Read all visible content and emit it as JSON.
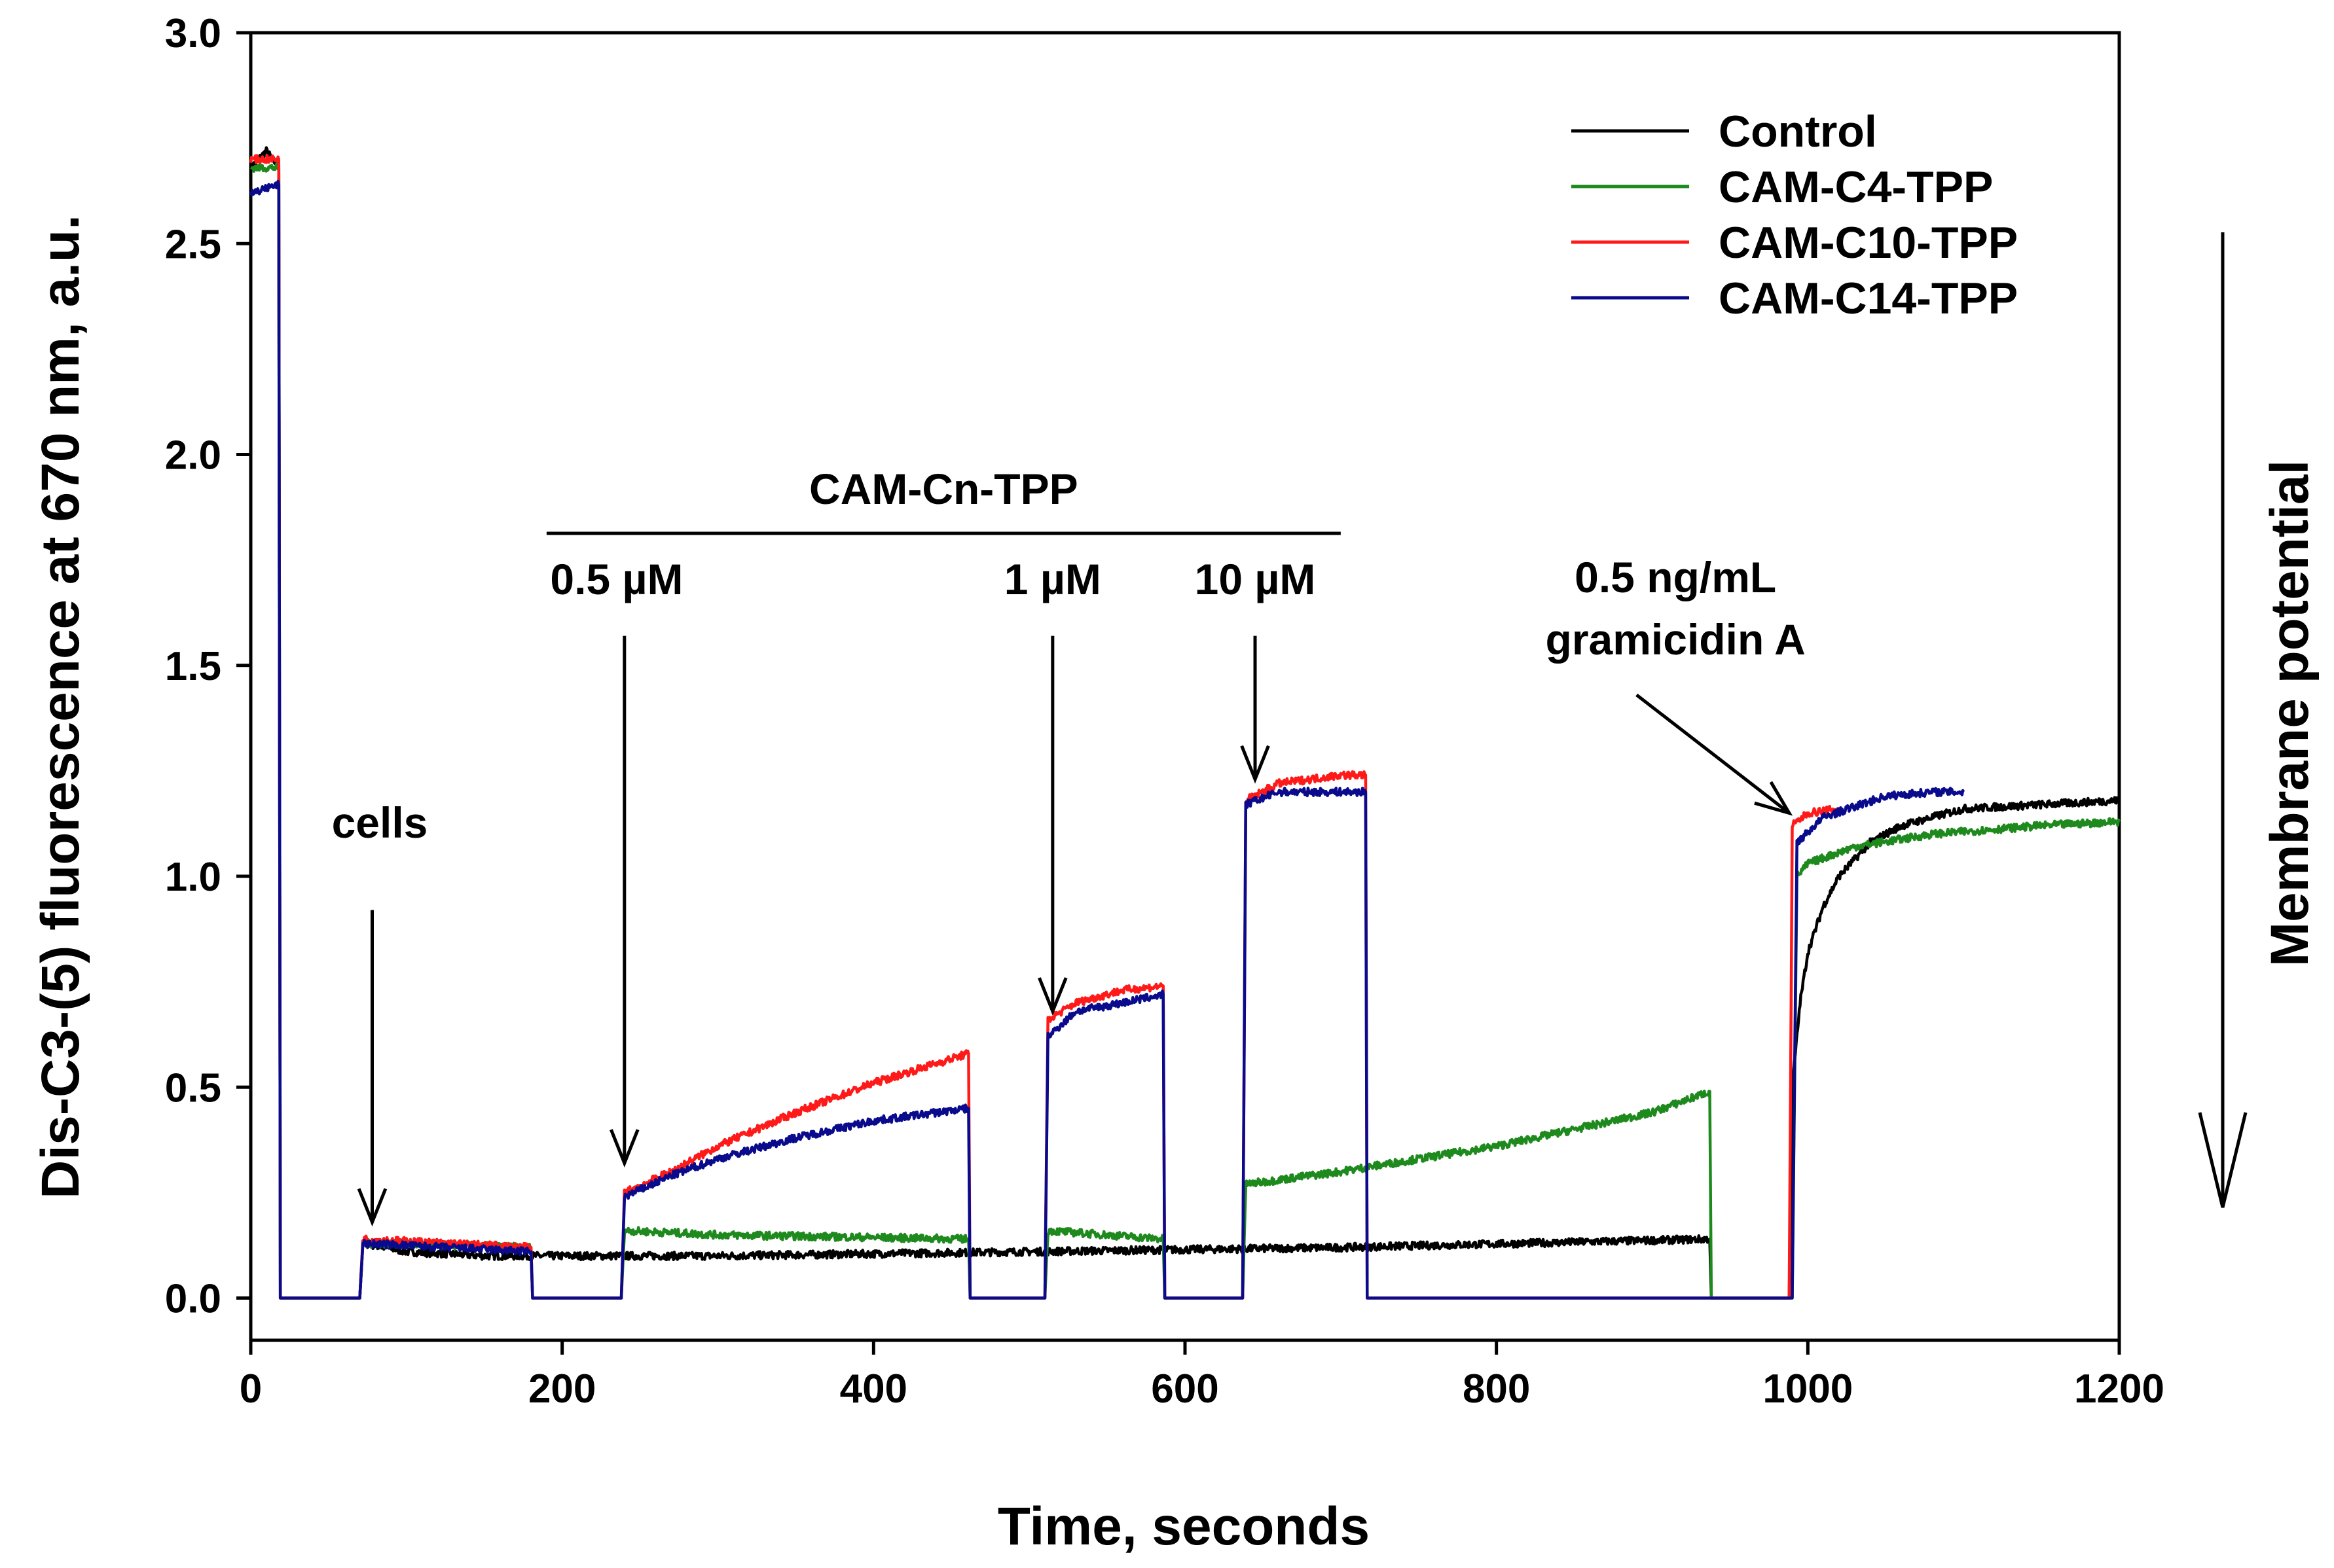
{
  "chart_data": {
    "type": "line",
    "title": "",
    "xlabel": "Time, seconds",
    "ylabel": "Dis-C3-(5) fluorescence at 670 nm, a.u.",
    "xlim": [
      0,
      1200
    ],
    "ylim": [
      -0.1,
      3.0
    ],
    "xticks": [
      "0",
      "200",
      "400",
      "600",
      "800",
      "1000",
      "1200"
    ],
    "yticks": [
      "0.0",
      "0.5",
      "1.0",
      "1.5",
      "2.0",
      "2.5",
      "3.0"
    ],
    "grid": false,
    "legend_position": "top-right",
    "series": [
      {
        "name": "Control",
        "color": "#000000",
        "points": [
          [
            0,
            2.68
          ],
          [
            10,
            2.72
          ],
          [
            18,
            2.68
          ],
          [
            19,
            0
          ],
          [
            70,
            0
          ],
          [
            72,
            0.13
          ],
          [
            100,
            0.11
          ],
          [
            150,
            0.1
          ],
          [
            300,
            0.1
          ],
          [
            500,
            0.11
          ],
          [
            700,
            0.12
          ],
          [
            937,
            0.14
          ],
          [
            938,
            0
          ],
          [
            988,
            0
          ],
          [
            990,
            0.5
          ],
          [
            995,
            0.7
          ],
          [
            1000,
            0.82
          ],
          [
            1010,
            0.93
          ],
          [
            1020,
            1.0
          ],
          [
            1040,
            1.08
          ],
          [
            1060,
            1.12
          ],
          [
            1080,
            1.14
          ],
          [
            1100,
            1.16
          ],
          [
            1150,
            1.17
          ],
          [
            1200,
            1.18
          ]
        ]
      },
      {
        "name": "CAM-C4-TPP",
        "color": "#1e8a1e",
        "points": [
          [
            0,
            2.68
          ],
          [
            18,
            2.68
          ],
          [
            19,
            0
          ],
          [
            70,
            0
          ],
          [
            72,
            0.13
          ],
          [
            180,
            0.12
          ],
          [
            181,
            0
          ],
          [
            238,
            0
          ],
          [
            240,
            0.16
          ],
          [
            300,
            0.15
          ],
          [
            461,
            0.14
          ],
          [
            462,
            0
          ],
          [
            510,
            0
          ],
          [
            512,
            0.16
          ],
          [
            586,
            0.14
          ],
          [
            587,
            0
          ],
          [
            637,
            0
          ],
          [
            639,
            0.27
          ],
          [
            700,
            0.3
          ],
          [
            800,
            0.36
          ],
          [
            900,
            0.44
          ],
          [
            937,
            0.49
          ],
          [
            938,
            0
          ],
          [
            990,
            0
          ],
          [
            993,
            1.0
          ],
          [
            1000,
            1.03
          ],
          [
            1030,
            1.07
          ],
          [
            1080,
            1.1
          ],
          [
            1150,
            1.12
          ],
          [
            1200,
            1.13
          ]
        ]
      },
      {
        "name": "CAM-C10-TPP",
        "color": "#ff1a1a",
        "points": [
          [
            0,
            2.7
          ],
          [
            18,
            2.7
          ],
          [
            19,
            0
          ],
          [
            70,
            0
          ],
          [
            72,
            0.14
          ],
          [
            180,
            0.12
          ],
          [
            181,
            0
          ],
          [
            238,
            0
          ],
          [
            240,
            0.25
          ],
          [
            270,
            0.3
          ],
          [
            300,
            0.36
          ],
          [
            350,
            0.44
          ],
          [
            400,
            0.51
          ],
          [
            461,
            0.58
          ],
          [
            462,
            0
          ],
          [
            510,
            0
          ],
          [
            512,
            0.66
          ],
          [
            530,
            0.7
          ],
          [
            560,
            0.73
          ],
          [
            586,
            0.74
          ],
          [
            587,
            0
          ],
          [
            637,
            0
          ],
          [
            639,
            1.18
          ],
          [
            660,
            1.22
          ],
          [
            700,
            1.24
          ],
          [
            716,
            1.24
          ],
          [
            717,
            0
          ],
          [
            988,
            0
          ],
          [
            990,
            1.12
          ],
          [
            1000,
            1.15
          ],
          [
            1020,
            1.16
          ]
        ]
      },
      {
        "name": "CAM-C14-TPP",
        "color": "#0a0a8c",
        "points": [
          [
            0,
            2.62
          ],
          [
            18,
            2.64
          ],
          [
            19,
            0
          ],
          [
            70,
            0
          ],
          [
            72,
            0.13
          ],
          [
            180,
            0.11
          ],
          [
            181,
            0
          ],
          [
            238,
            0
          ],
          [
            240,
            0.24
          ],
          [
            270,
            0.29
          ],
          [
            300,
            0.33
          ],
          [
            350,
            0.38
          ],
          [
            400,
            0.42
          ],
          [
            461,
            0.45
          ],
          [
            462,
            0
          ],
          [
            510,
            0
          ],
          [
            512,
            0.62
          ],
          [
            530,
            0.68
          ],
          [
            560,
            0.7
          ],
          [
            586,
            0.72
          ],
          [
            587,
            0
          ],
          [
            637,
            0
          ],
          [
            639,
            1.17
          ],
          [
            660,
            1.2
          ],
          [
            700,
            1.2
          ],
          [
            716,
            1.2
          ],
          [
            717,
            0
          ],
          [
            990,
            0
          ],
          [
            993,
            1.08
          ],
          [
            1010,
            1.14
          ],
          [
            1050,
            1.19
          ],
          [
            1080,
            1.2
          ],
          [
            1100,
            1.2
          ]
        ]
      }
    ],
    "annotations": [
      {
        "text": "cells",
        "arrow_to": [
          78,
          0.18
        ]
      },
      {
        "text": "CAM-Cn-TPP",
        "bracket_x": [
          190,
          700
        ]
      },
      {
        "text": "0.5 µM",
        "arrow_to": [
          240,
          0.32
        ]
      },
      {
        "text": "1 µM",
        "arrow_to": [
          515,
          0.68
        ]
      },
      {
        "text": "10 µM",
        "arrow_to": [
          645,
          1.23
        ]
      },
      {
        "text": "0.5 ng/mL",
        "line2": "gramicidin A",
        "arrow_to": [
          988,
          1.15
        ]
      },
      {
        "text": "Membrane potential"
      }
    ]
  }
}
